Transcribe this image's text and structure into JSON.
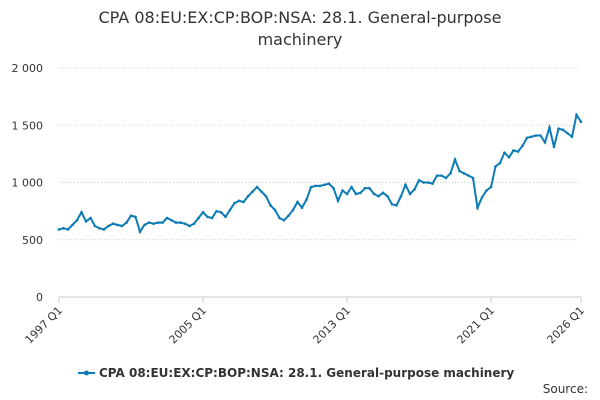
{
  "chart_data": {
    "type": "line",
    "title_lines": [
      "CPA 08:EU:EX:CP:BOP:NSA: 28.1. General-purpose",
      "machinery"
    ],
    "source": "Source:",
    "categories": [
      "1997 Q1",
      null,
      null,
      null,
      null,
      null,
      null,
      null,
      null,
      null,
      null,
      null,
      null,
      null,
      null,
      null,
      null,
      null,
      null,
      null,
      null,
      null,
      null,
      null,
      null,
      null,
      null,
      null,
      null,
      null,
      null,
      null,
      "2005 Q1",
      null,
      null,
      null,
      null,
      null,
      null,
      null,
      null,
      null,
      null,
      null,
      null,
      null,
      null,
      null,
      null,
      null,
      null,
      null,
      null,
      null,
      null,
      null,
      null,
      null,
      null,
      null,
      null,
      null,
      null,
      null,
      "2013 Q1",
      null,
      null,
      null,
      null,
      null,
      null,
      null,
      null,
      null,
      null,
      null,
      null,
      null,
      null,
      null,
      null,
      null,
      null,
      null,
      null,
      null,
      null,
      null,
      null,
      null,
      null,
      null,
      null,
      null,
      null,
      null,
      "2021 Q1",
      null,
      null,
      null,
      null,
      null,
      null,
      null,
      null,
      null,
      null,
      null,
      null,
      null,
      null,
      null,
      null,
      null,
      null,
      null,
      "2026 Q1"
    ],
    "series": [
      {
        "name": "CPA 08:EU:EX:CP:BOP:NSA: 28.1. General-purpose machinery",
        "color": "#0d7bb5",
        "values": [
          590,
          600,
          590,
          630,
          670,
          740,
          660,
          690,
          620,
          600,
          590,
          620,
          640,
          630,
          620,
          650,
          710,
          700,
          570,
          630,
          650,
          640,
          650,
          650,
          690,
          670,
          650,
          650,
          640,
          620,
          640,
          690,
          740,
          700,
          690,
          750,
          740,
          700,
          760,
          820,
          840,
          830,
          880,
          920,
          960,
          920,
          880,
          800,
          760,
          690,
          670,
          710,
          760,
          830,
          780,
          850,
          960,
          970,
          970,
          980,
          990,
          950,
          840,
          930,
          900,
          960,
          900,
          910,
          950,
          950,
          900,
          880,
          910,
          880,
          810,
          800,
          880,
          980,
          900,
          940,
          1020,
          1000,
          1000,
          990,
          1060,
          1060,
          1040,
          1080,
          1200,
          1100,
          1080,
          1060,
          1040,
          780,
          870,
          930,
          960,
          1140,
          1170,
          1260,
          1220,
          1280,
          1270,
          1320,
          1390,
          1400,
          1410,
          1410,
          1350,
          1480,
          1310,
          1470,
          1460,
          1430,
          1400,
          1590,
          1530
        ]
      }
    ],
    "ylim": [
      0,
      2000
    ],
    "yticks": [
      {
        "value": 0,
        "label": "0"
      },
      {
        "value": 500,
        "label": "500"
      },
      {
        "value": 1000,
        "label": "1 000"
      },
      {
        "value": 1500,
        "label": "1 500"
      },
      {
        "value": 2000,
        "label": "2 000"
      }
    ],
    "grid": true
  }
}
